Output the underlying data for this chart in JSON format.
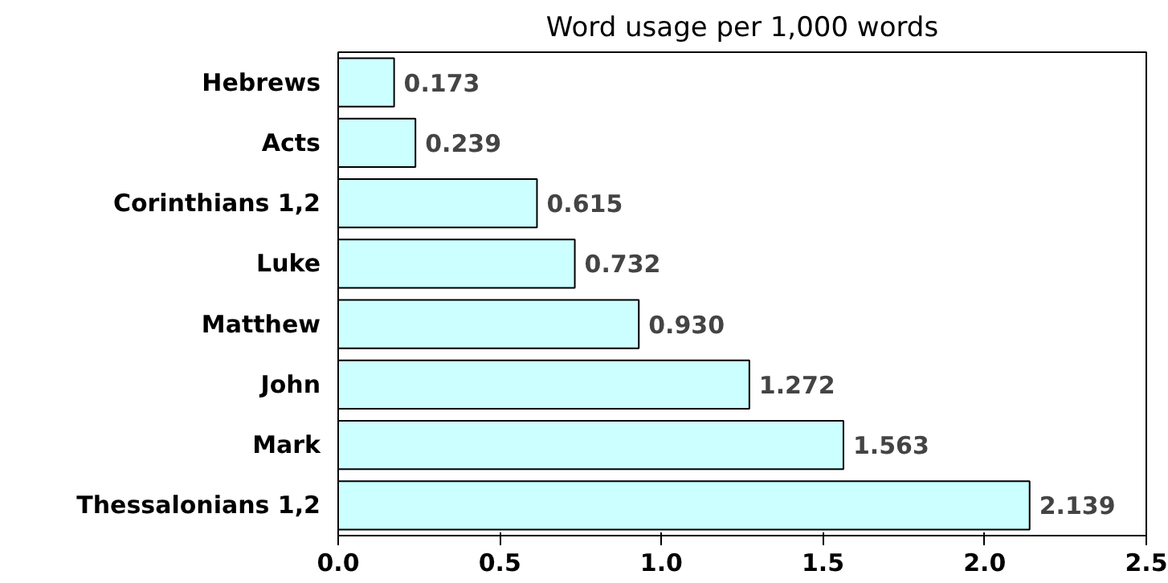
{
  "chart_data": {
    "type": "bar",
    "orientation": "horizontal",
    "title": "Word usage per 1,000 words",
    "categories": [
      "Hebrews",
      "Acts",
      "Corinthians 1,2",
      "Luke",
      "Matthew",
      "John",
      "Mark",
      "Thessalonians 1,2"
    ],
    "values": [
      0.173,
      0.239,
      0.615,
      0.732,
      0.93,
      1.272,
      1.563,
      2.139
    ],
    "value_labels": [
      "0.173",
      "0.239",
      "0.615",
      "0.732",
      "0.930",
      "1.272",
      "1.563",
      "2.139"
    ],
    "color": "#ccffff",
    "xlim": [
      0,
      2.5
    ],
    "xticks": [
      {
        "value": 0,
        "label": "0.0"
      },
      {
        "value": 0.5,
        "label": "0.5"
      },
      {
        "value": 1,
        "label": "1.0"
      },
      {
        "value": 1.5,
        "label": "1.5"
      },
      {
        "value": 2,
        "label": "2.0"
      },
      {
        "value": 2.5,
        "label": "2.5"
      }
    ],
    "grid": false
  }
}
